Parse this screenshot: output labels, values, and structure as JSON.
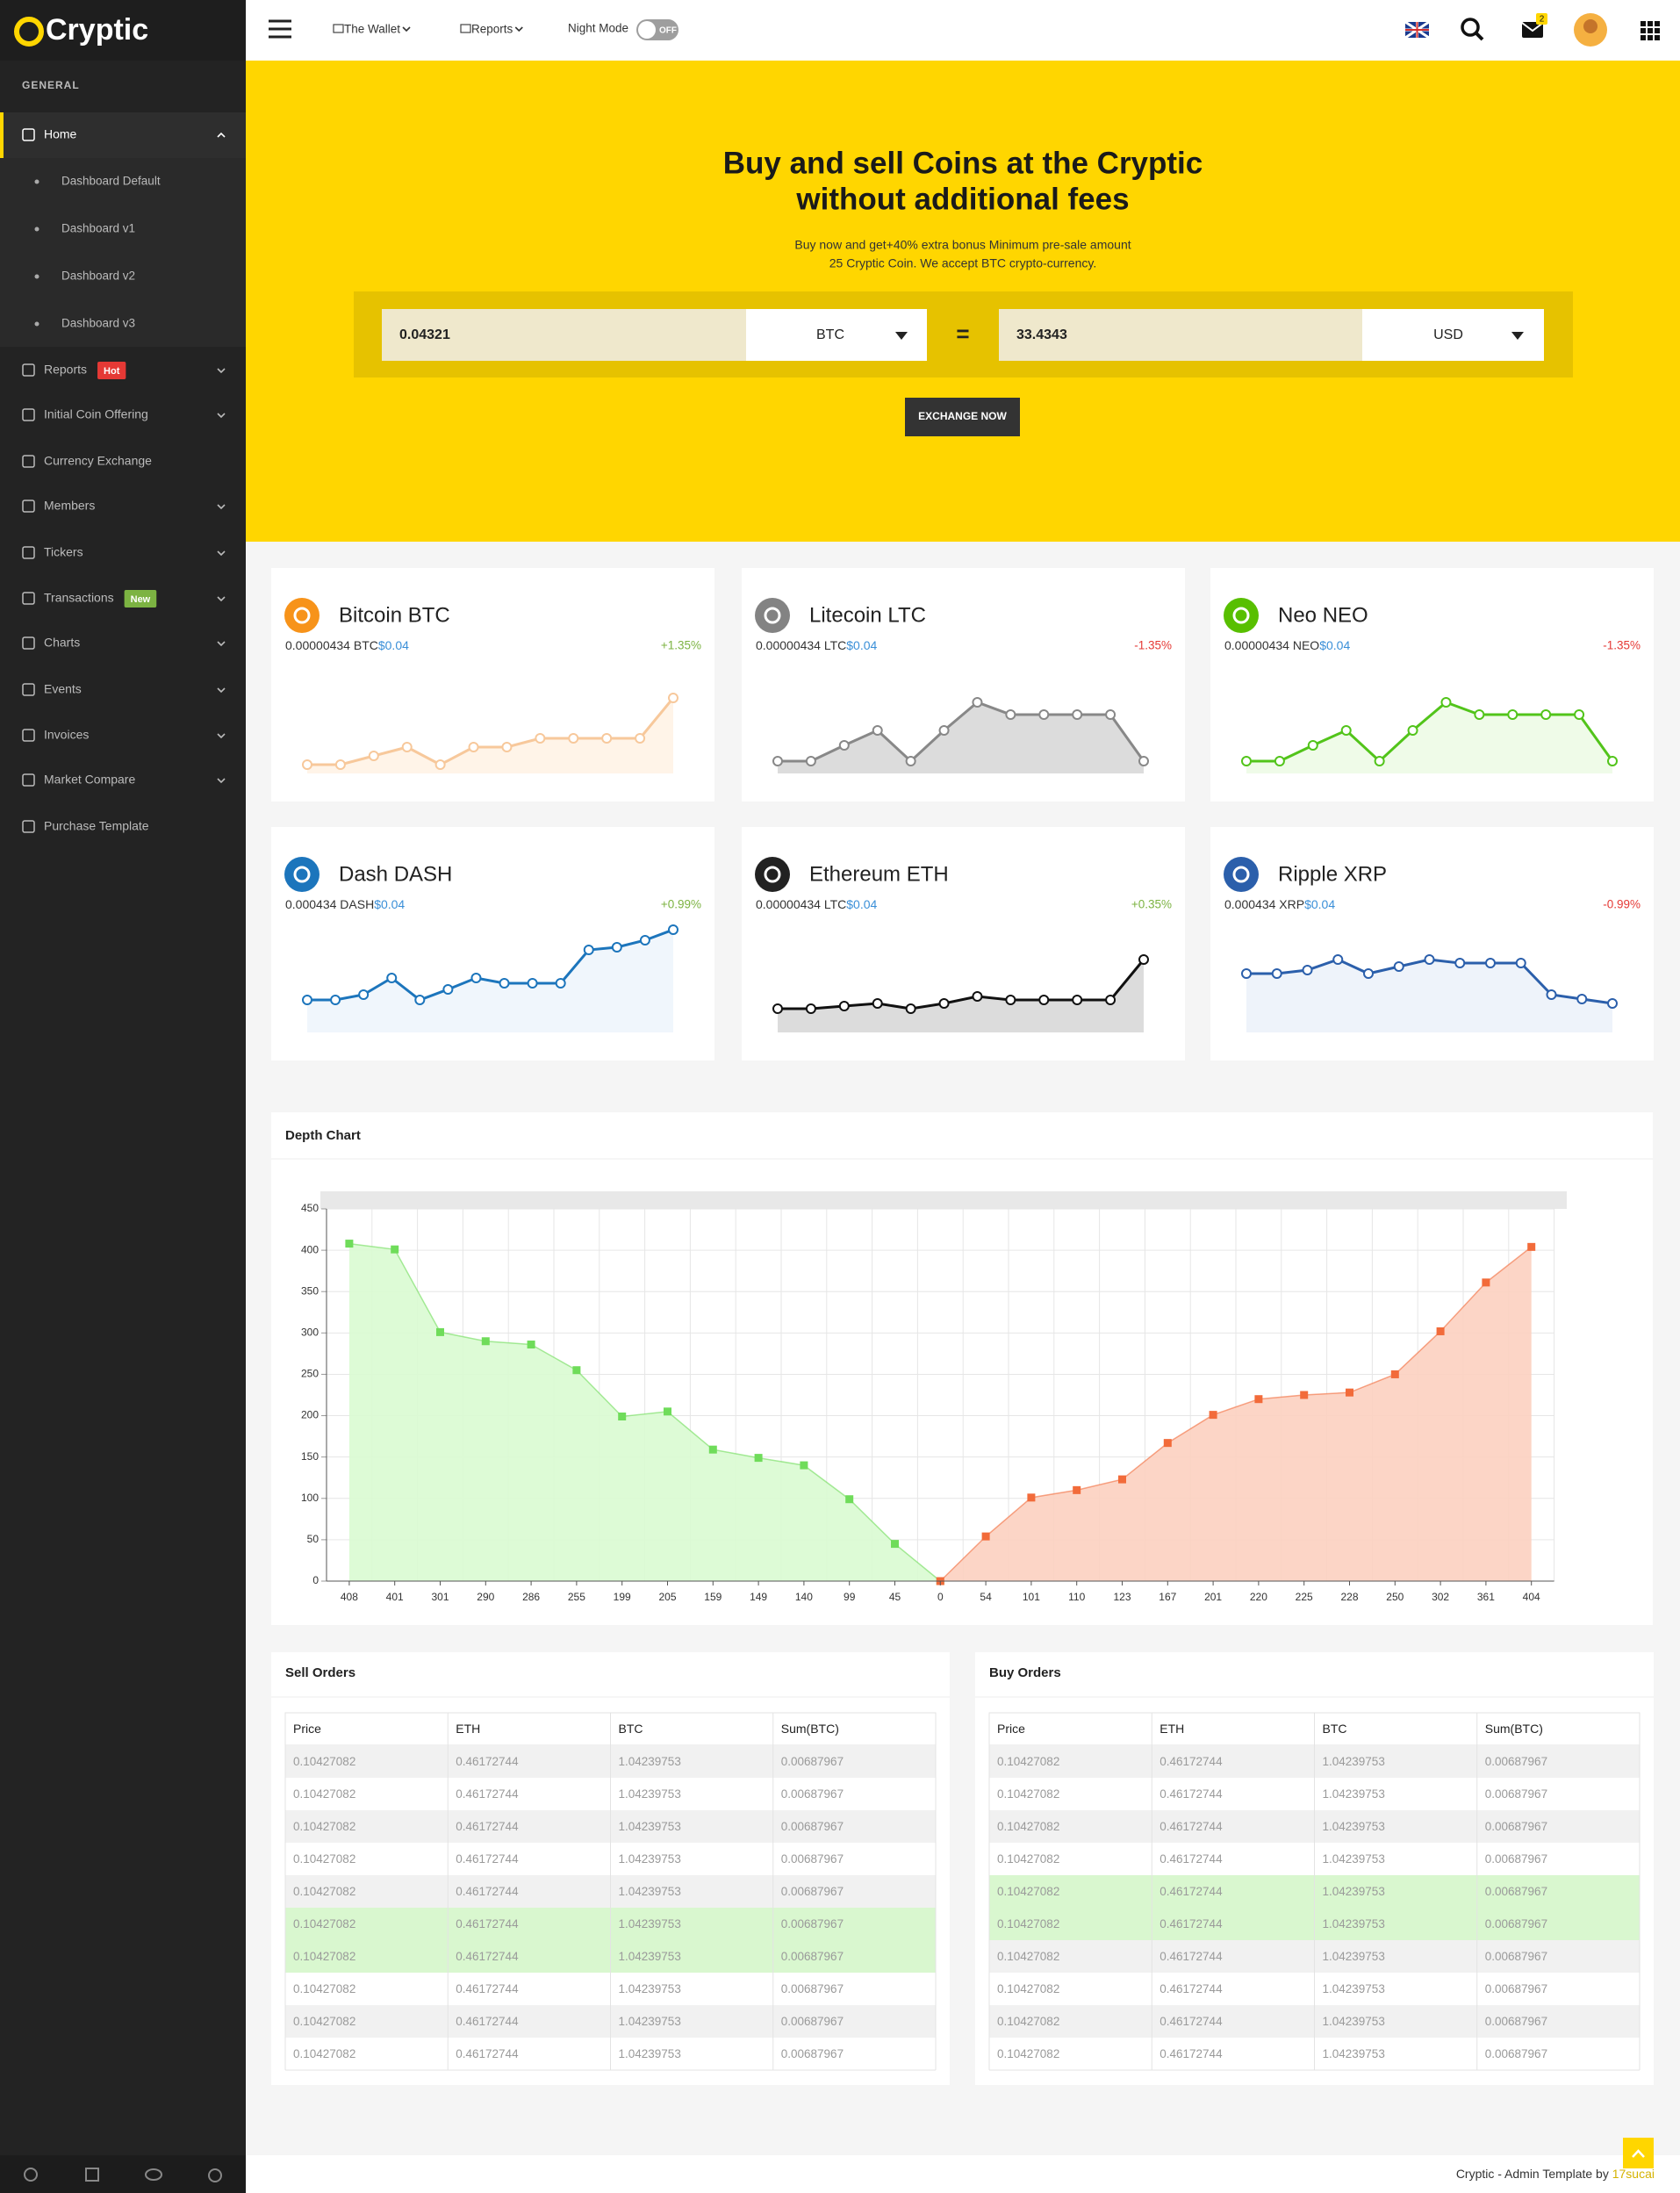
{
  "sidebar": {
    "brand": "Cryptic",
    "section": "GENERAL",
    "menu": [
      {
        "label": "Home",
        "children": [
          "Dashboard Default",
          "Dashboard v1",
          "Dashboard v2",
          "Dashboard v3"
        ]
      },
      {
        "label": "Reports",
        "badge": "Hot",
        "badge_color": "#e53935",
        "submenu": true
      },
      {
        "label": "Initial Coin Offering",
        "submenu": true
      },
      {
        "label": "Currency Exchange",
        "submenu": false
      },
      {
        "label": "Members",
        "submenu": true
      },
      {
        "label": "Tickers",
        "submenu": true
      },
      {
        "label": "Transactions",
        "badge": "New",
        "badge_color": "#7cb342",
        "submenu": true
      },
      {
        "label": "Charts",
        "submenu": true
      },
      {
        "label": "Events",
        "submenu": true
      },
      {
        "label": "Invoices",
        "submenu": true
      },
      {
        "label": "Market Compare",
        "submenu": true
      },
      {
        "label": "Purchase Template",
        "submenu": false
      }
    ]
  },
  "topbar": {
    "menu": [
      "The Wallet",
      "Reports"
    ],
    "night_mode": "Night Mode",
    "toggle": "OFF",
    "notifications": "2"
  },
  "hero": {
    "title": [
      "Buy and sell Coins at the Cryptic",
      "without additional fees"
    ],
    "subtitle": [
      "Buy now and get+40% extra bonus Minimum pre-sale amount",
      "25 Cryptic Coin. We accept BTC crypto-currency."
    ],
    "amount": "0.04321",
    "from": "BTC",
    "equals": "=",
    "result": "33.4343",
    "to": "USD",
    "button": "EXCHANGE NOW"
  },
  "coins": [
    {
      "name": "Bitcoin BTC",
      "amount": "0.00000434 BTC",
      "usd": "$0.04",
      "change": "+1.35%",
      "change_color": "#7cb342",
      "icon_color": "#f7931a",
      "color": "#f7c89b",
      "fill": "#fff4e8",
      "ylim": [
        0,
        12
      ],
      "values": [
        1,
        1,
        2,
        3,
        1,
        3,
        3,
        4,
        4,
        4,
        4,
        8.6
      ]
    },
    {
      "name": "Litecoin LTC",
      "amount": "0.00000434 LTC",
      "usd": "$0.04",
      "change": "-1.35%",
      "change_color": "#e53935",
      "icon_color": "#838383",
      "color": "#888888",
      "fill": "#dcdcdc",
      "ylim": [
        0,
        12
      ],
      "values": [
        1.4,
        1.4,
        3.2,
        4.9,
        1.4,
        4.9,
        8.1,
        6.7,
        6.7,
        6.7,
        6.7,
        1.4
      ]
    },
    {
      "name": "Neo NEO",
      "amount": "0.00000434 NEO",
      "usd": "$0.04",
      "change": "-1.35%",
      "change_color": "#e53935",
      "icon_color": "#58bf00",
      "color": "#52c41a",
      "fill": "#effbe8",
      "ylim": [
        0,
        12
      ],
      "values": [
        1.4,
        1.4,
        3.2,
        4.9,
        1.4,
        4.9,
        8.1,
        6.7,
        6.7,
        6.7,
        6.7,
        1.4
      ]
    },
    {
      "name": "Dash DASH",
      "amount": "0.000434 DASH",
      "usd": "$0.04",
      "change": "+0.99%",
      "change_color": "#7cb342",
      "icon_color": "#1c75bc",
      "color": "#1c75bc",
      "fill": "#f0f6fc",
      "ylim": [
        0,
        12
      ],
      "values": [
        3.7,
        3.7,
        4.3,
        6.2,
        3.7,
        4.9,
        6.2,
        5.6,
        5.6,
        5.6,
        9.4,
        9.7,
        10.5,
        11.7
      ]
    },
    {
      "name": "Ethereum ETH",
      "amount": "0.00000434 LTC",
      "usd": "$0.04",
      "change": "+0.35%",
      "change_color": "#7cb342",
      "icon_color": "#222222",
      "color": "#111111",
      "fill": "#dcdcdc",
      "ylim": [
        0,
        12
      ],
      "values": [
        2.7,
        2.7,
        3,
        3.3,
        2.7,
        3.3,
        4.1,
        3.7,
        3.7,
        3.7,
        3.7,
        8.3
      ]
    },
    {
      "name": "Ripple XRP",
      "amount": "0.000434 XRP",
      "usd": "$0.04",
      "change": "-0.99%",
      "change_color": "#e53935",
      "icon_color": "#2b5fab",
      "color": "#2b5fab",
      "fill": "#eef3fa",
      "ylim": [
        0,
        12
      ],
      "values": [
        6.7,
        6.7,
        7.1,
        8.3,
        6.7,
        7.5,
        8.3,
        7.9,
        7.9,
        7.9,
        4.3,
        3.8,
        3.3
      ]
    }
  ],
  "depth_chart": {
    "type": "area",
    "title": "Depth Chart",
    "categories": [
      "408",
      "401",
      "301",
      "290",
      "286",
      "255",
      "199",
      "205",
      "159",
      "149",
      "140",
      "99",
      "45",
      "0",
      "54",
      "101",
      "110",
      "123",
      "167",
      "201",
      "220",
      "225",
      "228",
      "250",
      "302",
      "361",
      "404"
    ],
    "series": [
      {
        "color": "#6fdc5a",
        "fill": "#d9fbd2",
        "values": [
          408,
          401,
          301,
          290,
          286,
          255,
          199,
          205,
          159,
          149,
          140,
          99,
          45,
          0,
          null,
          null,
          null,
          null,
          null,
          null,
          null,
          null,
          null,
          null,
          null,
          null,
          null
        ]
      },
      {
        "color": "#f26b3a",
        "fill": "#fcd0c0",
        "values": [
          null,
          null,
          null,
          null,
          null,
          null,
          null,
          null,
          null,
          null,
          null,
          null,
          null,
          0,
          54,
          101,
          110,
          123,
          167,
          201,
          220,
          225,
          228,
          250,
          302,
          361,
          404
        ]
      }
    ],
    "ylim": [
      0,
      450
    ],
    "yticks": [
      0,
      50,
      100,
      150,
      200,
      250,
      300,
      350,
      400,
      450
    ],
    "grid": true
  },
  "sell_orders": {
    "title": "Sell Orders",
    "columns": [
      "Price",
      "ETH",
      "BTC",
      "Sum(BTC)"
    ],
    "highlight_rows": [
      5,
      6
    ],
    "rows": [
      [
        "0.10427082",
        "0.46172744",
        "1.04239753",
        "0.00687967"
      ],
      [
        "0.10427082",
        "0.46172744",
        "1.04239753",
        "0.00687967"
      ],
      [
        "0.10427082",
        "0.46172744",
        "1.04239753",
        "0.00687967"
      ],
      [
        "0.10427082",
        "0.46172744",
        "1.04239753",
        "0.00687967"
      ],
      [
        "0.10427082",
        "0.46172744",
        "1.04239753",
        "0.00687967"
      ],
      [
        "0.10427082",
        "0.46172744",
        "1.04239753",
        "0.00687967"
      ],
      [
        "0.10427082",
        "0.46172744",
        "1.04239753",
        "0.00687967"
      ],
      [
        "0.10427082",
        "0.46172744",
        "1.04239753",
        "0.00687967"
      ],
      [
        "0.10427082",
        "0.46172744",
        "1.04239753",
        "0.00687967"
      ],
      [
        "0.10427082",
        "0.46172744",
        "1.04239753",
        "0.00687967"
      ]
    ]
  },
  "buy_orders": {
    "title": "Buy Orders",
    "columns": [
      "Price",
      "ETH",
      "BTC",
      "Sum(BTC)"
    ],
    "highlight_rows": [
      4,
      5
    ],
    "rows": [
      [
        "0.10427082",
        "0.46172744",
        "1.04239753",
        "0.00687967"
      ],
      [
        "0.10427082",
        "0.46172744",
        "1.04239753",
        "0.00687967"
      ],
      [
        "0.10427082",
        "0.46172744",
        "1.04239753",
        "0.00687967"
      ],
      [
        "0.10427082",
        "0.46172744",
        "1.04239753",
        "0.00687967"
      ],
      [
        "0.10427082",
        "0.46172744",
        "1.04239753",
        "0.00687967"
      ],
      [
        "0.10427082",
        "0.46172744",
        "1.04239753",
        "0.00687967"
      ],
      [
        "0.10427082",
        "0.46172744",
        "1.04239753",
        "0.00687967"
      ],
      [
        "0.10427082",
        "0.46172744",
        "1.04239753",
        "0.00687967"
      ],
      [
        "0.10427082",
        "0.46172744",
        "1.04239753",
        "0.00687967"
      ],
      [
        "0.10427082",
        "0.46172744",
        "1.04239753",
        "0.00687967"
      ]
    ]
  },
  "footer": {
    "text": "Cryptic - Admin Template by ",
    "link": "17sucai"
  }
}
